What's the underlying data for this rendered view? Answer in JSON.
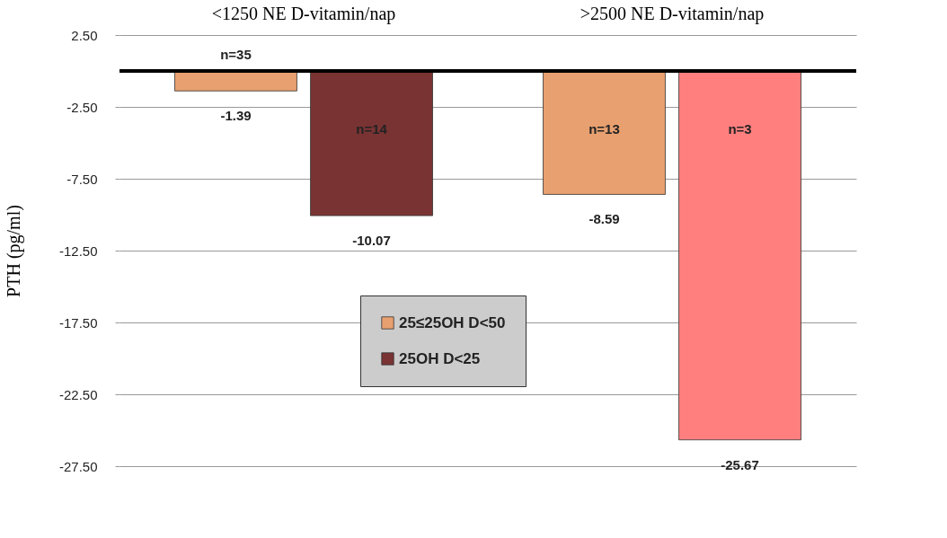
{
  "chart_data": {
    "type": "bar",
    "categories": [
      "<1250 NE D-vitamin/nap",
      ">2500 NE D-vitamin/nap"
    ],
    "ylabel": "PTH (pg/ml)",
    "series": [
      {
        "name": "25≤25OH D<50",
        "color": "#e8a070",
        "values": [
          -1.39,
          -8.59
        ]
      },
      {
        "name": "25OH D<25",
        "color": "#7a3333",
        "colors": [
          "#7a3333",
          "#ff7f7f"
        ],
        "values": [
          -10.07,
          -25.67
        ]
      }
    ],
    "ylim": [
      -27.5,
      2.5
    ],
    "yticks": [
      {
        "value": 2.5,
        "label": "2.50"
      },
      {
        "value": -2.5,
        "label": "-2.50"
      },
      {
        "value": -7.5,
        "label": "-7.50"
      },
      {
        "value": -12.5,
        "label": "-12.50"
      },
      {
        "value": -17.5,
        "label": "-17.50"
      },
      {
        "value": -22.5,
        "label": "-22.50"
      },
      {
        "value": -27.5,
        "label": "-27.50"
      }
    ],
    "grid": "y",
    "legend": "bottom",
    "data_labels": true,
    "annotations": [
      "n=35",
      "n=14",
      "n=13",
      "n=3"
    ]
  }
}
